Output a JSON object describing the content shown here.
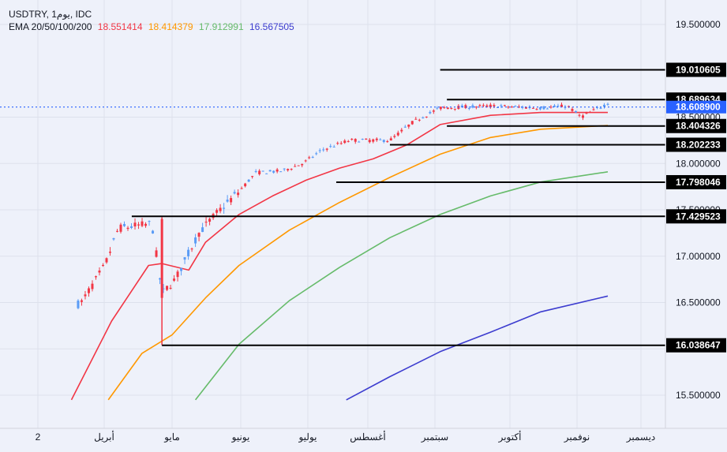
{
  "header": {
    "symbol_line": "USDTRY, 1يوم, IDC",
    "ema_label": "EMA 20/50/100/200",
    "ema_values": [
      {
        "value": "18.551414",
        "color": "#f23645"
      },
      {
        "value": "18.414379",
        "color": "#ff9800"
      },
      {
        "value": "17.912991",
        "color": "#66bb6a"
      },
      {
        "value": "16.567505",
        "color": "#3c3ccf"
      }
    ]
  },
  "chart_data": {
    "type": "line",
    "title": "",
    "ylim": [
      15.46,
      19.65
    ],
    "y_ticks": [
      {
        "value": 15.5,
        "label": "15.500000"
      },
      {
        "value": 16.0,
        "label": "16.000000"
      },
      {
        "value": 16.5,
        "label": "16.500000"
      },
      {
        "value": 17.0,
        "label": "17.000000"
      },
      {
        "value": 17.5,
        "label": "17.500000"
      },
      {
        "value": 18.0,
        "label": "18.000000"
      },
      {
        "value": 18.5,
        "label": "18.500000"
      },
      {
        "value": 19.5,
        "label": "19.500000"
      }
    ],
    "x_ticks": [
      "2",
      "أبريل",
      "مايو",
      "يونيو",
      "يوليو",
      "أغسطس",
      "سبتمبر",
      "أكتوبر",
      "نوفمبر",
      "ديسمبر"
    ],
    "grid": true,
    "current_price": {
      "value": 18.6089,
      "label": "18.608900"
    },
    "levels": [
      {
        "value": 19.010605,
        "label": "19.010605"
      },
      {
        "value": 18.689634,
        "label": "18.689634"
      },
      {
        "value": 18.404326,
        "label": "18.404326"
      },
      {
        "value": 18.202233,
        "label": "18.202233"
      },
      {
        "value": 17.798046,
        "label": "17.798046"
      },
      {
        "value": 17.429523,
        "label": "17.429523"
      },
      {
        "value": 16.038647,
        "label": "16.038647"
      }
    ],
    "candles": {
      "up_color": "#5b9cf6",
      "down_color": "#f23645",
      "segments": [
        [
          0.0,
          15.45
        ],
        [
          0.05,
          16.05
        ],
        [
          0.1,
          16.45
        ],
        [
          0.13,
          16.5
        ],
        [
          0.2,
          16.9
        ],
        [
          0.24,
          17.3
        ],
        [
          0.34,
          17.35
        ],
        [
          0.37,
          16.6
        ],
        [
          0.41,
          16.75
        ],
        [
          0.48,
          17.25
        ],
        [
          0.53,
          17.45
        ],
        [
          0.6,
          17.7
        ],
        [
          0.65,
          17.9
        ],
        [
          0.73,
          17.92
        ],
        [
          0.79,
          18.0
        ],
        [
          0.85,
          18.15
        ],
        [
          0.93,
          18.25
        ],
        [
          1.05,
          18.25
        ],
        [
          1.12,
          18.45
        ],
        [
          1.2,
          18.6
        ],
        [
          1.35,
          18.62
        ],
        [
          1.5,
          18.6
        ],
        [
          1.58,
          18.62
        ],
        [
          1.62,
          18.5
        ],
        [
          1.7,
          18.65
        ]
      ]
    },
    "series": [
      {
        "name": "EMA 20",
        "color": "#f23645",
        "points": [
          [
            0.1,
            15.45
          ],
          [
            0.22,
            16.3
          ],
          [
            0.33,
            16.9
          ],
          [
            0.37,
            16.92
          ],
          [
            0.45,
            16.85
          ],
          [
            0.5,
            17.15
          ],
          [
            0.6,
            17.45
          ],
          [
            0.7,
            17.65
          ],
          [
            0.8,
            17.82
          ],
          [
            0.9,
            17.95
          ],
          [
            1.0,
            18.05
          ],
          [
            1.1,
            18.2
          ],
          [
            1.2,
            18.42
          ],
          [
            1.35,
            18.52
          ],
          [
            1.5,
            18.55
          ],
          [
            1.7,
            18.55
          ]
        ]
      },
      {
        "name": "EMA 50",
        "color": "#ff9800",
        "points": [
          [
            0.21,
            15.45
          ],
          [
            0.31,
            15.95
          ],
          [
            0.4,
            16.15
          ],
          [
            0.5,
            16.55
          ],
          [
            0.6,
            16.9
          ],
          [
            0.75,
            17.28
          ],
          [
            0.9,
            17.58
          ],
          [
            1.05,
            17.85
          ],
          [
            1.2,
            18.1
          ],
          [
            1.35,
            18.28
          ],
          [
            1.5,
            18.37
          ],
          [
            1.7,
            18.41
          ]
        ]
      },
      {
        "name": "EMA 100",
        "color": "#66bb6a",
        "points": [
          [
            0.47,
            15.45
          ],
          [
            0.6,
            16.05
          ],
          [
            0.75,
            16.52
          ],
          [
            0.9,
            16.88
          ],
          [
            1.05,
            17.2
          ],
          [
            1.2,
            17.45
          ],
          [
            1.35,
            17.65
          ],
          [
            1.5,
            17.8
          ],
          [
            1.7,
            17.91
          ]
        ]
      },
      {
        "name": "EMA 200",
        "color": "#3c3ccf",
        "points": [
          [
            0.92,
            15.45
          ],
          [
            1.05,
            15.7
          ],
          [
            1.2,
            15.97
          ],
          [
            1.35,
            16.18
          ],
          [
            1.5,
            16.4
          ],
          [
            1.7,
            16.57
          ]
        ]
      }
    ]
  }
}
